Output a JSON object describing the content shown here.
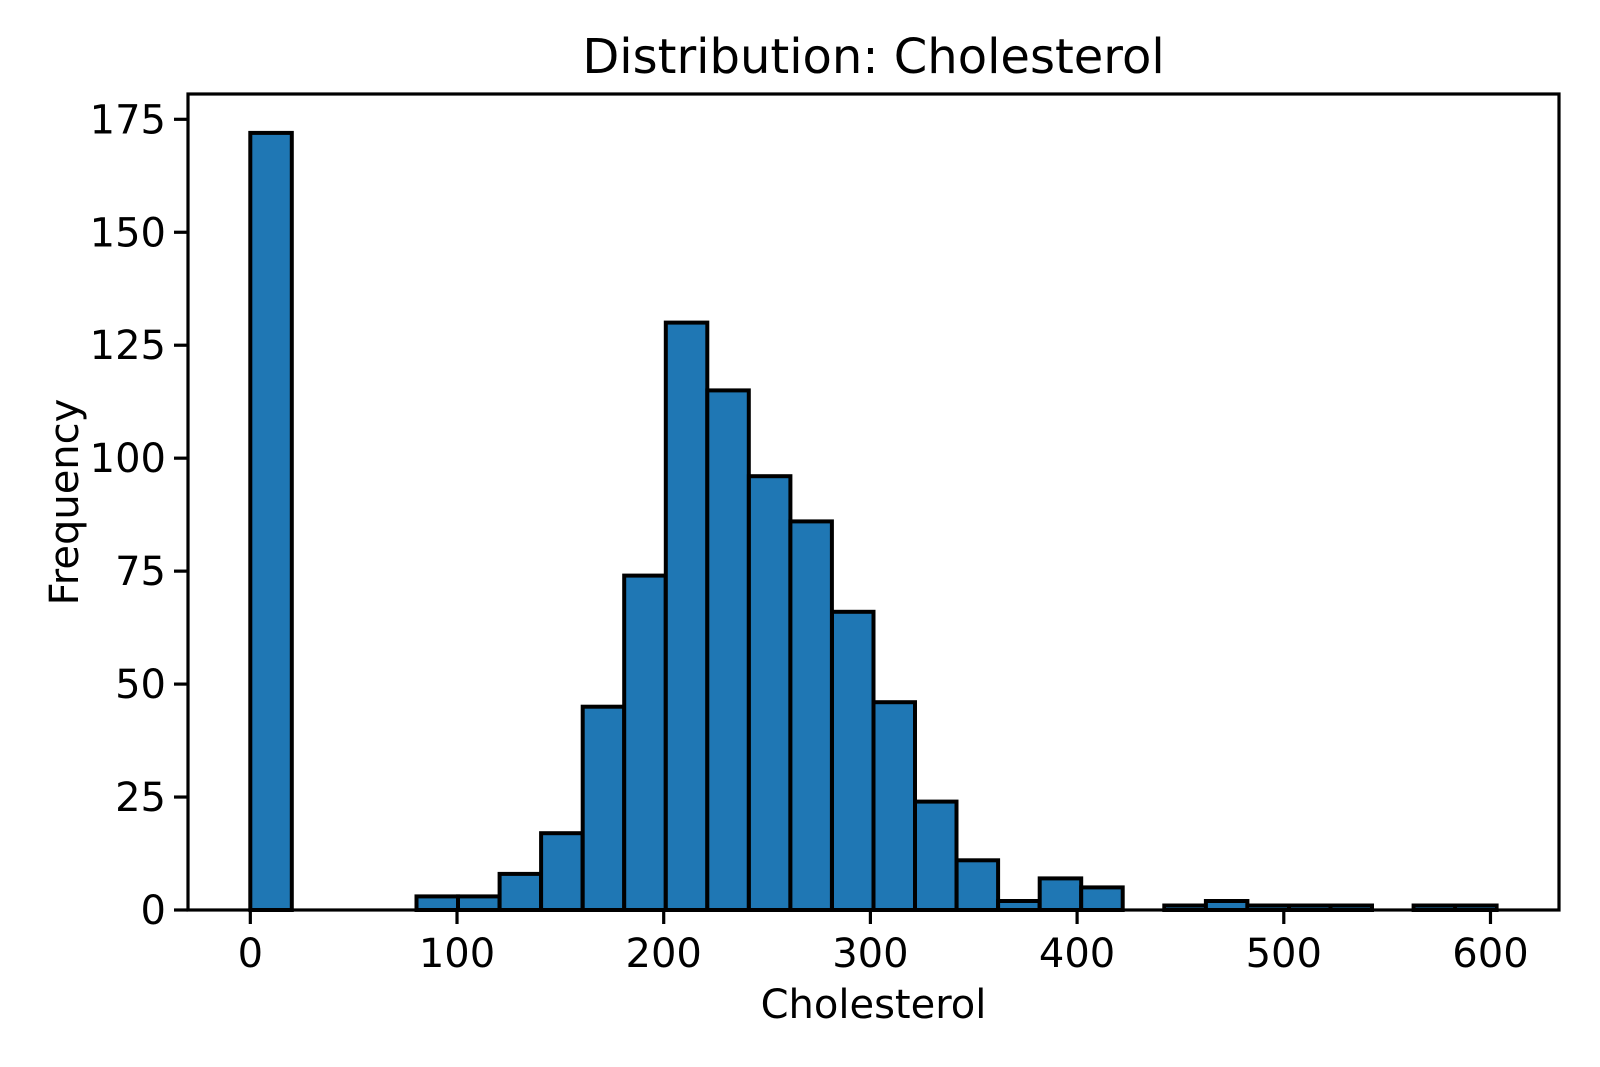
{
  "figure": {
    "background_color": "#ffffff"
  },
  "chart_data": {
    "type": "bar",
    "subtype": "histogram",
    "title": "Distribution: Cholesterol",
    "xlabel": "Cholesterol",
    "ylabel": "Frequency",
    "bar_color": "#1f77b4",
    "bar_edge_color": "#000000",
    "axis_color": "#000000",
    "text_color": "#000000",
    "grid": false,
    "legend_position": "none",
    "bin_start": 0,
    "bin_width": 20.1,
    "counts": [
      172,
      0,
      0,
      0,
      3,
      3,
      8,
      17,
      45,
      74,
      130,
      115,
      96,
      86,
      66,
      46,
      24,
      11,
      2,
      7,
      5,
      0,
      1,
      2,
      1,
      1,
      1,
      0,
      1,
      1
    ],
    "total_observations": 918,
    "xticks": [
      0,
      100,
      200,
      300,
      400,
      500,
      600
    ],
    "yticks": [
      0,
      25,
      50,
      75,
      100,
      125,
      150,
      175
    ],
    "xlim": [
      -30.15,
      633.15
    ],
    "ylim": [
      0,
      180.6
    ]
  }
}
